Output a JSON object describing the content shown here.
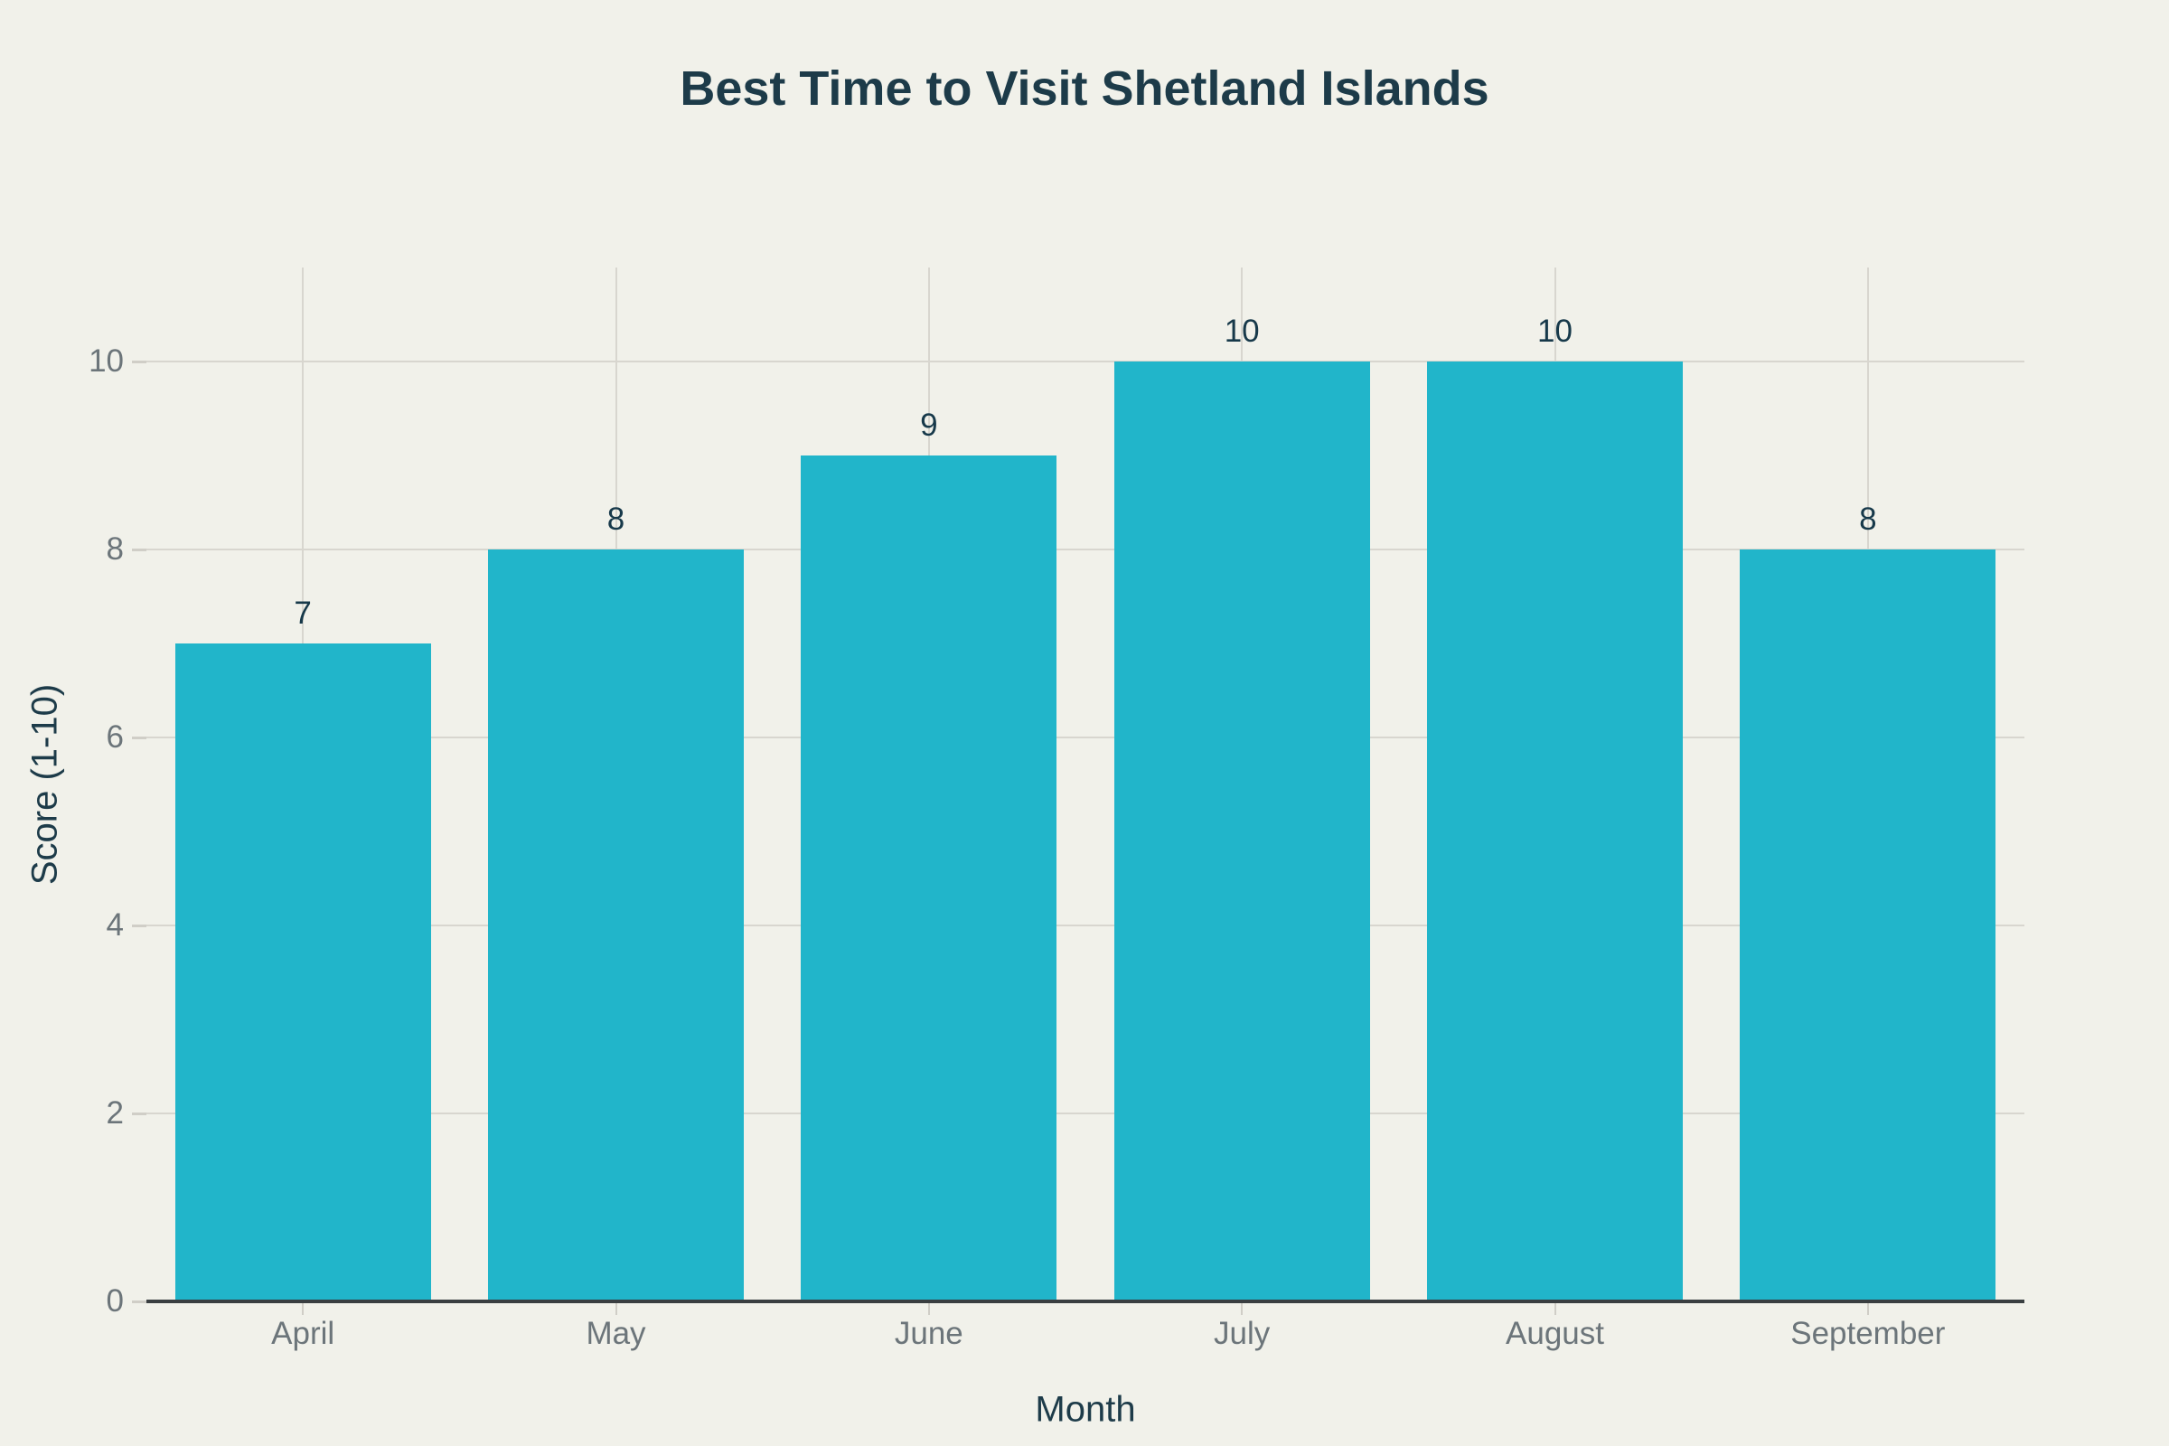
{
  "chart_data": {
    "type": "bar",
    "title": "Best Time to Visit Shetland Islands",
    "xlabel": "Month",
    "ylabel": "Score (1-10)",
    "categories": [
      "April",
      "May",
      "June",
      "July",
      "August",
      "September"
    ],
    "values": [
      7,
      8,
      9,
      10,
      10,
      8
    ],
    "bar_value_labels": [
      "7",
      "8",
      "9",
      "10",
      "10",
      "8"
    ],
    "yticks": [
      0,
      2,
      4,
      6,
      8,
      10
    ],
    "ylim": [
      0,
      11
    ],
    "grid": true,
    "legend": false,
    "colors": {
      "background": "#F1F1EA",
      "bar": "#21B5CA",
      "title": "#1D3B49",
      "axis_title": "#1D3B49",
      "tick_label": "#6C757A",
      "gridline": "#D8D6CF",
      "tick_mark": "#D0CEC7",
      "axis_line": "#3A3F41",
      "value_label": "#17394A"
    }
  }
}
